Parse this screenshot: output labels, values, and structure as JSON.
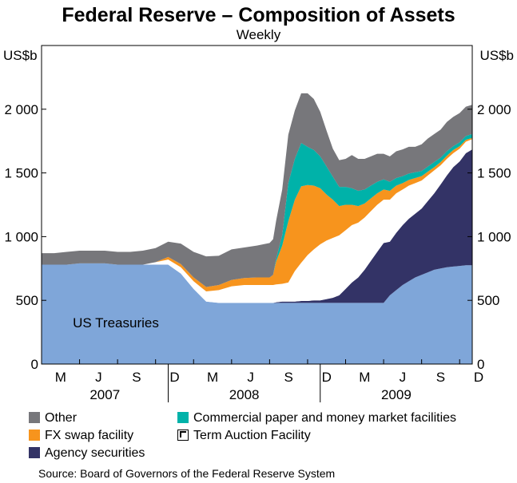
{
  "chart_data": {
    "type": "area",
    "stacked": true,
    "title": "Federal Reserve – Composition of Assets",
    "subtitle": "Weekly",
    "ylabel_left": "US$b",
    "ylabel_right": "US$b",
    "ylim": [
      0,
      2500
    ],
    "yticks": [
      0,
      500,
      1000,
      1500,
      2000
    ],
    "ytick_labels": [
      "0",
      "500",
      "1 000",
      "1 500",
      "2 000"
    ],
    "xlim": [
      2007.167,
      2010.0
    ],
    "month_labels": [
      "M",
      "J",
      "S",
      "D",
      "M",
      "J",
      "S",
      "D",
      "M",
      "J",
      "S",
      "D"
    ],
    "year_labels": [
      "2007",
      "2008",
      "2009"
    ],
    "annotation": "US Treasuries",
    "source": "Source: Board of Governors of the Federal Reserve System",
    "x": [
      2007.167,
      2007.25,
      2007.333,
      2007.417,
      2007.5,
      2007.583,
      2007.667,
      2007.75,
      2007.833,
      2007.917,
      2008.0,
      2008.083,
      2008.167,
      2008.25,
      2008.333,
      2008.417,
      2008.5,
      2008.583,
      2008.667,
      2008.69,
      2008.71,
      2008.75,
      2008.79,
      2008.833,
      2008.875,
      2008.917,
      2008.958,
      2009.0,
      2009.042,
      2009.083,
      2009.125,
      2009.167,
      2009.208,
      2009.25,
      2009.292,
      2009.333,
      2009.375,
      2009.417,
      2009.458,
      2009.5,
      2009.542,
      2009.583,
      2009.625,
      2009.667,
      2009.708,
      2009.75,
      2009.792,
      2009.833,
      2009.875,
      2009.917,
      2009.958,
      2010.0
    ],
    "series": [
      {
        "name": "US Treasuries",
        "color": "#7fa6d9",
        "values": [
          780,
          780,
          780,
          790,
          790,
          790,
          780,
          780,
          780,
          780,
          780,
          710,
          590,
          490,
          480,
          480,
          480,
          480,
          480,
          480,
          480,
          480,
          480,
          480,
          480,
          480,
          480,
          480,
          480,
          480,
          480,
          480,
          480,
          480,
          480,
          480,
          480,
          480,
          540,
          580,
          620,
          650,
          680,
          700,
          720,
          740,
          750,
          760,
          765,
          770,
          775,
          775
        ]
      },
      {
        "name": "Agency securities",
        "color": "#333366",
        "values": [
          0,
          0,
          0,
          0,
          0,
          0,
          0,
          0,
          0,
          0,
          0,
          0,
          0,
          0,
          0,
          0,
          0,
          0,
          0,
          0,
          5,
          10,
          10,
          10,
          15,
          15,
          20,
          20,
          30,
          40,
          60,
          110,
          160,
          200,
          260,
          330,
          400,
          470,
          420,
          450,
          470,
          490,
          500,
          520,
          560,
          600,
          660,
          720,
          780,
          820,
          880,
          910
        ]
      },
      {
        "name": "Term Auction Facility",
        "color": "#ffffff",
        "values": [
          0,
          0,
          0,
          0,
          0,
          0,
          0,
          0,
          0,
          20,
          40,
          50,
          60,
          80,
          100,
          130,
          140,
          140,
          140,
          140,
          140,
          140,
          150,
          240,
          300,
          360,
          400,
          440,
          460,
          470,
          470,
          460,
          450,
          430,
          410,
          390,
          370,
          340,
          330,
          310,
          280,
          260,
          240,
          220,
          200,
          180,
          150,
          130,
          110,
          100,
          90,
          80
        ]
      },
      {
        "name": "FX swap facility",
        "color": "#f7941d",
        "values": [
          0,
          0,
          0,
          0,
          0,
          0,
          0,
          0,
          0,
          0,
          20,
          25,
          30,
          35,
          40,
          50,
          55,
          60,
          60,
          80,
          180,
          300,
          480,
          560,
          600,
          550,
          500,
          440,
          360,
          300,
          230,
          200,
          160,
          130,
          110,
          100,
          90,
          80,
          70,
          60,
          50,
          45,
          40,
          35,
          30,
          25,
          25,
          25,
          25,
          20,
          15,
          10
        ]
      },
      {
        "name": "Commercial paper and money market facilities",
        "color": "#00b2a9",
        "values": [
          0,
          0,
          0,
          0,
          0,
          0,
          0,
          0,
          0,
          0,
          0,
          0,
          0,
          0,
          0,
          0,
          0,
          0,
          0,
          0,
          20,
          80,
          300,
          320,
          340,
          300,
          280,
          250,
          220,
          180,
          150,
          140,
          130,
          120,
          110,
          100,
          90,
          80,
          70,
          60,
          55,
          50,
          45,
          40,
          40,
          40,
          35,
          35,
          30,
          30,
          30,
          30
        ]
      },
      {
        "name": "Other",
        "color": "#77777b",
        "values": [
          90,
          90,
          100,
          100,
          100,
          100,
          100,
          100,
          110,
          110,
          120,
          160,
          200,
          240,
          230,
          240,
          240,
          250,
          270,
          280,
          300,
          360,
          380,
          380,
          390,
          420,
          400,
          350,
          280,
          220,
          210,
          220,
          260,
          250,
          240,
          230,
          220,
          200,
          200,
          210,
          210,
          210,
          200,
          210,
          220,
          220,
          220,
          230,
          230,
          230,
          230,
          230
        ]
      }
    ],
    "legend": [
      {
        "label": "Other",
        "color": "#77777b"
      },
      {
        "label": "Commercial paper and money market facilities",
        "color": "#00b2a9"
      },
      {
        "label": "FX swap facility",
        "color": "#f7941d"
      },
      {
        "label": "Term Auction Facility",
        "color": "#ffffff"
      },
      {
        "label": "Agency securities",
        "color": "#333366"
      }
    ]
  }
}
